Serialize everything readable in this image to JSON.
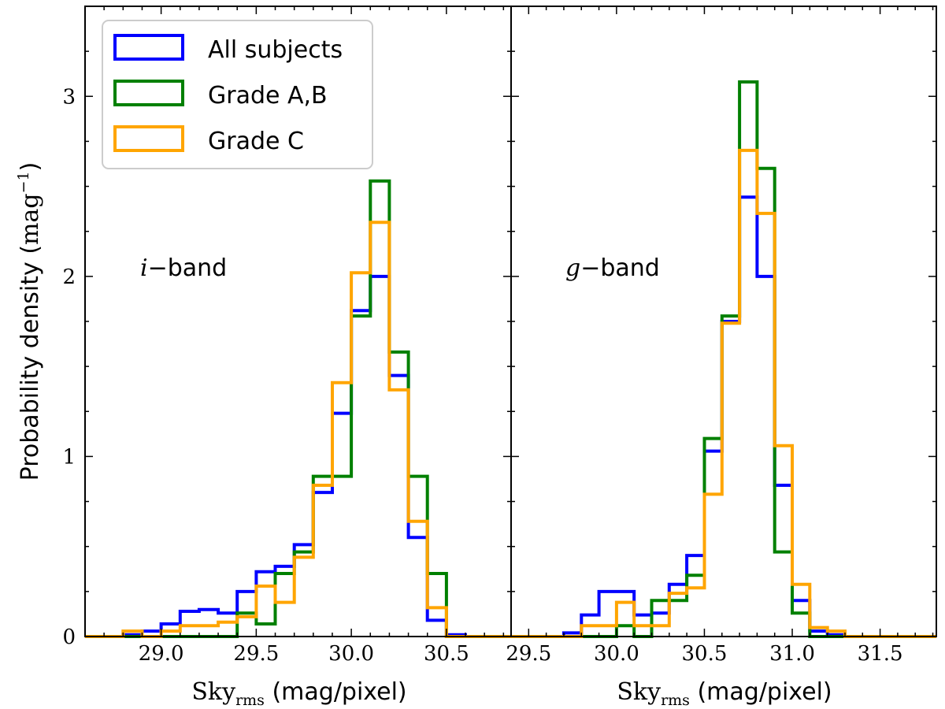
{
  "chart_data": [
    {
      "type": "histogram",
      "panel_label_var": "i",
      "panel_label_rest": "−band",
      "xlabel_main": "Sky",
      "xlabel_sub": "rms",
      "xlabel_units": " (mag/pixel)",
      "ylabel": "Probability density",
      "ylabel_units_base": "mag",
      "ylabel_units_exp": "−1",
      "xlim": [
        28.6,
        30.84
      ],
      "ylim": [
        0,
        3.5
      ],
      "xticks": [
        29.0,
        29.5,
        30.0,
        30.5
      ],
      "xtick_labels": [
        "29.0",
        "29.5",
        "30.0",
        "30.5"
      ],
      "yticks": [
        0,
        1,
        2,
        3
      ],
      "ytick_labels": [
        "0",
        "1",
        "2",
        "3"
      ],
      "bin_edges": [
        28.6,
        28.7,
        28.8,
        28.9,
        29.0,
        29.1,
        29.2,
        29.3,
        29.4,
        29.5,
        29.6,
        29.7,
        29.8,
        29.9,
        30.0,
        30.1,
        30.2,
        30.3,
        30.4,
        30.5,
        30.6,
        30.7,
        30.84
      ],
      "series": [
        {
          "name": "All subjects",
          "color": "#0000ff",
          "values": [
            0.0,
            0.0,
            0.01,
            0.03,
            0.07,
            0.14,
            0.15,
            0.13,
            0.25,
            0.36,
            0.39,
            0.51,
            0.8,
            1.24,
            1.81,
            2.0,
            1.45,
            0.55,
            0.09,
            0.01,
            0.0,
            0.0
          ]
        },
        {
          "name": "Grade A,B",
          "color": "#008000",
          "values": [
            0.0,
            0.0,
            0.0,
            0.0,
            0.0,
            0.0,
            0.0,
            0.0,
            0.13,
            0.07,
            0.35,
            0.47,
            0.89,
            0.89,
            1.78,
            2.53,
            1.58,
            0.89,
            0.35,
            0.0,
            0.0,
            0.0
          ]
        },
        {
          "name": "Grade C",
          "color": "#ffa500",
          "values": [
            0.0,
            0.0,
            0.03,
            0.0,
            0.03,
            0.06,
            0.06,
            0.08,
            0.11,
            0.28,
            0.19,
            0.44,
            0.84,
            1.41,
            2.02,
            2.3,
            1.37,
            0.64,
            0.16,
            0.0,
            0.0,
            0.0
          ]
        }
      ]
    },
    {
      "type": "histogram",
      "panel_label_var": "g",
      "panel_label_rest": "−band",
      "xlabel_main": "Sky",
      "xlabel_sub": "rms",
      "xlabel_units": " (mag/pixel)",
      "xlim": [
        29.4,
        31.82
      ],
      "ylim": [
        0,
        3.5
      ],
      "xticks": [
        29.5,
        30.0,
        30.5,
        31.0,
        31.5
      ],
      "xtick_labels": [
        "29.5",
        "30.0",
        "30.5",
        "31.0",
        "31.5"
      ],
      "bin_edges": [
        29.4,
        29.5,
        29.6,
        29.7,
        29.8,
        29.9,
        30.0,
        30.1,
        30.2,
        30.3,
        30.4,
        30.5,
        30.6,
        30.7,
        30.8,
        30.9,
        31.0,
        31.1,
        31.2,
        31.3,
        31.4,
        31.5,
        31.6,
        31.82
      ],
      "series": [
        {
          "name": "All subjects",
          "color": "#0000ff",
          "values": [
            0.0,
            0.0,
            0.0,
            0.02,
            0.12,
            0.25,
            0.25,
            0.12,
            0.13,
            0.29,
            0.45,
            1.03,
            1.75,
            2.44,
            2.0,
            0.84,
            0.2,
            0.03,
            0.01,
            0.0,
            0.0,
            0.0,
            0.0
          ]
        },
        {
          "name": "Grade A,B",
          "color": "#008000",
          "values": [
            0.0,
            0.0,
            0.0,
            0.0,
            0.0,
            0.0,
            0.06,
            0.0,
            0.2,
            0.2,
            0.34,
            1.1,
            1.78,
            3.08,
            2.6,
            0.47,
            0.13,
            0.0,
            0.0,
            0.0,
            0.0,
            0.0,
            0.0
          ]
        },
        {
          "name": "Grade C",
          "color": "#ffa500",
          "values": [
            0.0,
            0.0,
            0.0,
            0.0,
            0.06,
            0.06,
            0.19,
            0.06,
            0.06,
            0.24,
            0.27,
            0.79,
            1.74,
            2.7,
            2.35,
            1.06,
            0.29,
            0.05,
            0.03,
            0.0,
            0.0,
            0.0,
            0.0
          ]
        }
      ]
    }
  ],
  "legend": {
    "items": [
      {
        "label": "All subjects",
        "color": "#0000ff"
      },
      {
        "label": "Grade A,B",
        "color": "#008000"
      },
      {
        "label": "Grade C",
        "color": "#ffa500"
      }
    ]
  }
}
